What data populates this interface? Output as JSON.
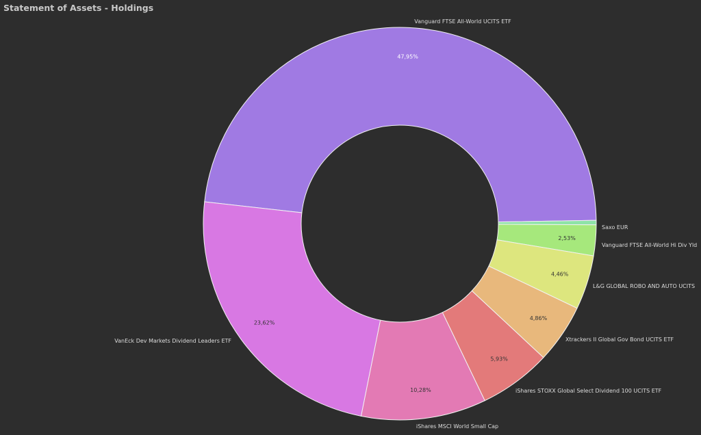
{
  "chart_data": {
    "type": "pie",
    "variant": "donut",
    "title": "Statement of Assets - Holdings",
    "slices": [
      {
        "label": "Vanguard FTSE All-World UCITS ETF",
        "value": 47.95,
        "display": "47,95%",
        "color": "#a07ae3"
      },
      {
        "label": "Saxo EUR",
        "value": 0.37,
        "display": "",
        "color": "#8ee3a8"
      },
      {
        "label": "Vanguard FTSE All-World Hi Div Yld",
        "value": 2.53,
        "display": "2,53%",
        "color": "#a6e87c"
      },
      {
        "label": "L&G GLOBAL ROBO AND AUTO UCITS",
        "value": 4.46,
        "display": "4,46%",
        "color": "#dde67e"
      },
      {
        "label": "Xtrackers II Global Gov Bond UCITS ETF",
        "value": 4.86,
        "display": "4,86%",
        "color": "#e8b87c"
      },
      {
        "label": "iShares STOXX Global Select Dividend 100 UCITS ETF",
        "value": 5.93,
        "display": "5,93%",
        "color": "#e37a7a"
      },
      {
        "label": "iShares MSCI World Small Cap",
        "value": 10.28,
        "display": "10,28%",
        "color": "#e37ab4"
      },
      {
        "label": "VanEck Dev Markets Dividend Leaders ETF",
        "value": 23.62,
        "display": "23,62%",
        "color": "#d878e3"
      }
    ],
    "direction": "clockwise",
    "legend": "none"
  }
}
